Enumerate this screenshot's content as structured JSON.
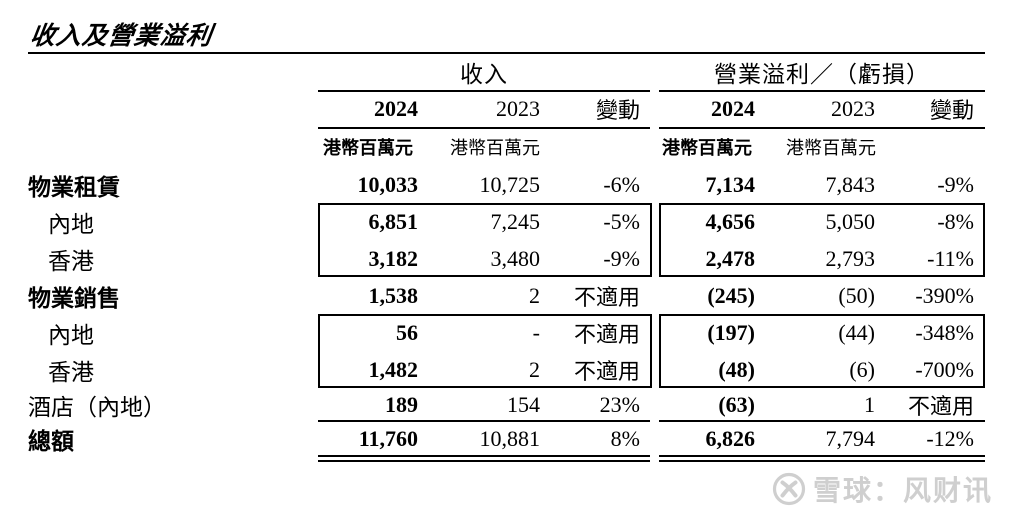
{
  "title": "收入及營業溢利",
  "table": {
    "groups": {
      "revenue": "收入",
      "profit": "營業溢利／（虧損）"
    },
    "col_headers": {
      "y2024": "2024",
      "y2023": "2023",
      "change": "變動"
    },
    "unit": "港幣百萬元",
    "rows": [
      {
        "label": "物業租賃",
        "indent": false,
        "bold_label": true,
        "boxed": false,
        "rev_2024": "10,033",
        "rev_2023": "10,725",
        "rev_chg": "-6%",
        "op_2024": "7,134",
        "op_2023": "7,843",
        "op_chg": "-9%"
      },
      {
        "label": "內地",
        "indent": true,
        "bold_label": false,
        "boxed": true,
        "rev_2024": "6,851",
        "rev_2023": "7,245",
        "rev_chg": "-5%",
        "op_2024": "4,656",
        "op_2023": "5,050",
        "op_chg": "-8%"
      },
      {
        "label": "香港",
        "indent": true,
        "bold_label": false,
        "boxed": true,
        "rev_2024": "3,182",
        "rev_2023": "3,480",
        "rev_chg": "-9%",
        "op_2024": "2,478",
        "op_2023": "2,793",
        "op_chg": "-11%"
      },
      {
        "label": "物業銷售",
        "indent": false,
        "bold_label": true,
        "boxed": false,
        "rev_2024": "1,538",
        "rev_2023": "2",
        "rev_chg": "不適用",
        "op_2024": "(245)",
        "op_2023": "(50)",
        "op_chg": "-390%"
      },
      {
        "label": "內地",
        "indent": true,
        "bold_label": false,
        "boxed": true,
        "rev_2024": "56",
        "rev_2023": "-",
        "rev_chg": "不適用",
        "op_2024": "(197)",
        "op_2023": "(44)",
        "op_chg": "-348%"
      },
      {
        "label": "香港",
        "indent": true,
        "bold_label": false,
        "boxed": true,
        "rev_2024": "1,482",
        "rev_2023": "2",
        "rev_chg": "不適用",
        "op_2024": "(48)",
        "op_2023": "(6)",
        "op_chg": "-700%"
      },
      {
        "label": "酒店（內地）",
        "indent": false,
        "bold_label": false,
        "boxed": false,
        "rev_2024": "189",
        "rev_2023": "154",
        "rev_chg": "23%",
        "op_2024": "(63)",
        "op_2023": "1",
        "op_chg": "不適用"
      },
      {
        "label": "總額",
        "indent": false,
        "bold_label": true,
        "boxed": false,
        "rev_2024": "11,760",
        "rev_2023": "10,881",
        "rev_chg": "8%",
        "op_2024": "6,826",
        "op_2023": "7,794",
        "op_chg": "-12%"
      }
    ]
  },
  "watermark": {
    "text": "雪球：风财讯"
  },
  "colors": {
    "ink": "#000000",
    "watermark_gray": "#cfcfcf"
  }
}
